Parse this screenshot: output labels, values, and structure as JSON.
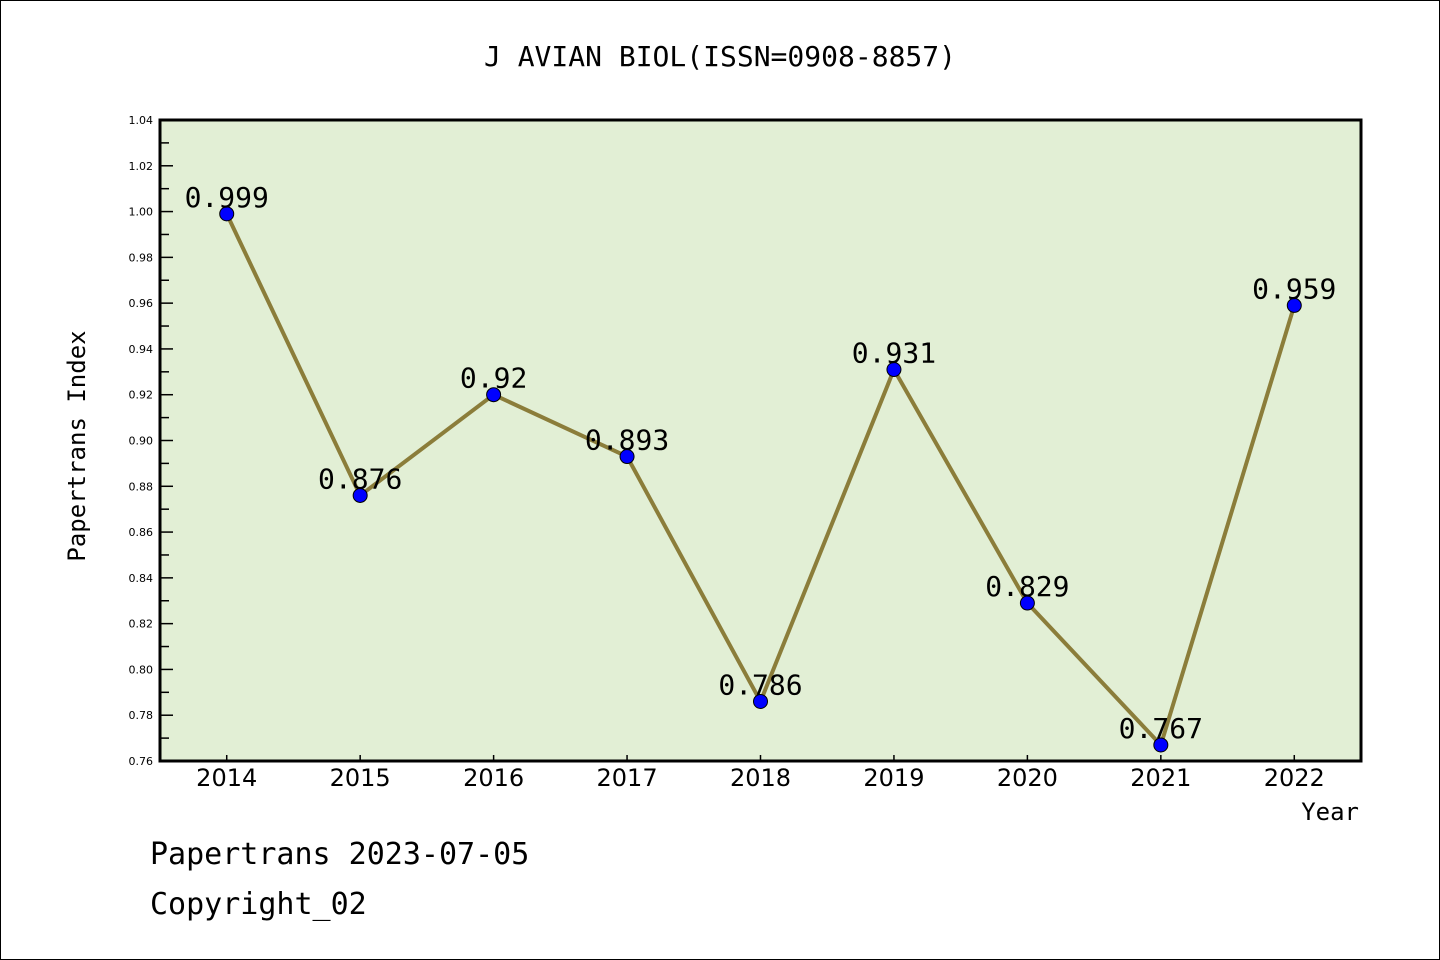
{
  "chart_data": {
    "type": "line",
    "title": "J AVIAN BIOL(ISSN=0908-8857)",
    "xlabel": "Year",
    "ylabel": "Papertrans Index",
    "x": [
      "2014",
      "2015",
      "2016",
      "2017",
      "2018",
      "2019",
      "2020",
      "2021",
      "2022"
    ],
    "series": [
      {
        "name": "Papertrans Index",
        "values": [
          0.999,
          0.876,
          0.92,
          0.893,
          0.786,
          0.931,
          0.829,
          0.767,
          0.959
        ]
      }
    ],
    "data_labels": [
      "0.999",
      "0.876",
      "0.92",
      "0.893",
      "0.786",
      "0.931",
      "0.829",
      "0.767",
      "0.959"
    ],
    "ylim": [
      0.76,
      1.04
    ],
    "yticks": [
      "0.76",
      "0.78",
      "0.80",
      "0.82",
      "0.84",
      "0.86",
      "0.88",
      "0.90",
      "0.92",
      "0.94",
      "0.96",
      "0.98",
      "1.00",
      "1.02",
      "1.04"
    ],
    "grid": false,
    "colors": {
      "plot_bg": "#e2efd5",
      "line": "#8b7d3a",
      "marker": "#0000ff"
    }
  },
  "footer": {
    "date_line": "Papertrans 2023-07-05",
    "copyright": "Copyright_02"
  }
}
